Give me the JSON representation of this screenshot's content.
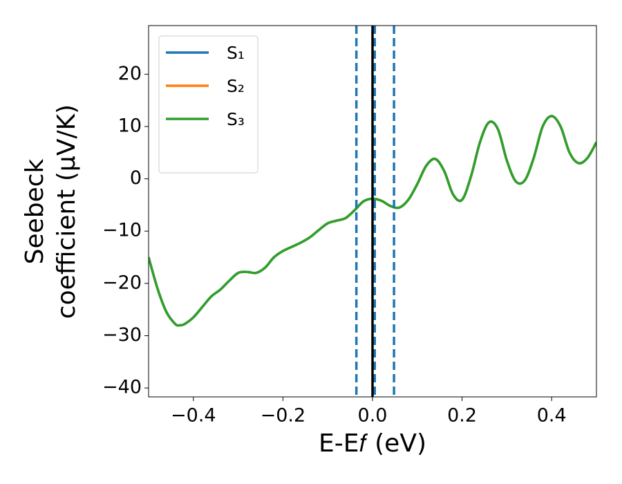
{
  "chart_data": {
    "type": "line",
    "xlabel": "E-E𝑓 (eV)",
    "ylabel": [
      "Seebeck",
      "coefficient  (μV/K)"
    ],
    "x": [
      -0.5,
      -0.48,
      -0.46,
      -0.44,
      -0.43,
      -0.42,
      -0.4,
      -0.38,
      -0.36,
      -0.34,
      -0.32,
      -0.3,
      -0.28,
      -0.26,
      -0.24,
      -0.22,
      -0.2,
      -0.18,
      -0.16,
      -0.14,
      -0.12,
      -0.1,
      -0.08,
      -0.06,
      -0.04,
      -0.02,
      0.0,
      0.02,
      0.04,
      0.06,
      0.08,
      0.1,
      0.12,
      0.14,
      0.16,
      0.18,
      0.2,
      0.22,
      0.24,
      0.26,
      0.28,
      0.3,
      0.32,
      0.34,
      0.36,
      0.38,
      0.4,
      0.42,
      0.44,
      0.46,
      0.48,
      0.5
    ],
    "series": [
      {
        "name": "S₁",
        "color": "#1f77b4",
        "values": [
          -15,
          -21,
          -25.5,
          -27.8,
          -28,
          -27.8,
          -26.5,
          -24.5,
          -22.5,
          -21.2,
          -19.5,
          -18,
          -17.8,
          -18,
          -17,
          -15,
          -13.8,
          -13,
          -12.2,
          -11.2,
          -9.8,
          -8.5,
          -8,
          -7.5,
          -6,
          -4.3,
          -3.8,
          -4.2,
          -5.2,
          -5.5,
          -4,
          -1,
          2.5,
          3.8,
          1.5,
          -3,
          -4,
          0.5,
          7,
          10.8,
          9.5,
          3.5,
          -0.5,
          -0.3,
          4,
          10,
          12,
          10,
          5,
          3,
          4,
          7
        ]
      },
      {
        "name": "S₂",
        "color": "#ff7f0e",
        "values": [
          -15,
          -21,
          -25.5,
          -27.8,
          -28,
          -27.8,
          -26.5,
          -24.5,
          -22.5,
          -21.2,
          -19.5,
          -18,
          -17.8,
          -18,
          -17,
          -15,
          -13.8,
          -13,
          -12.2,
          -11.2,
          -9.8,
          -8.5,
          -8,
          -7.5,
          -6,
          -4.3,
          -3.8,
          -4.2,
          -5.2,
          -5.5,
          -4,
          -1,
          2.5,
          3.8,
          1.5,
          -3,
          -4,
          0.5,
          7,
          10.8,
          9.5,
          3.5,
          -0.5,
          -0.3,
          4,
          10,
          12,
          10,
          5,
          3,
          4,
          7
        ]
      },
      {
        "name": "S₃",
        "color": "#2ca02c",
        "values": [
          -15,
          -21,
          -25.5,
          -27.8,
          -28,
          -27.8,
          -26.5,
          -24.5,
          -22.5,
          -21.2,
          -19.5,
          -18,
          -17.8,
          -18,
          -17,
          -15,
          -13.8,
          -13,
          -12.2,
          -11.2,
          -9.8,
          -8.5,
          -8,
          -7.5,
          -6,
          -4.3,
          -3.8,
          -4.2,
          -5.2,
          -5.5,
          -4,
          -1,
          2.5,
          3.8,
          1.5,
          -3,
          -4,
          0.5,
          7,
          10.8,
          9.5,
          3.5,
          -0.5,
          -0.3,
          4,
          10,
          12,
          10,
          5,
          3,
          4,
          7
        ]
      }
    ],
    "vlines": [
      {
        "x": -0.036,
        "color": "#1f77b4",
        "style": "dashed"
      },
      {
        "x": 0.005,
        "color": "#1f77b4",
        "style": "dashed"
      },
      {
        "x": 0.048,
        "color": "#1f77b4",
        "style": "dashed"
      },
      {
        "x": 0.0,
        "color": "#000000",
        "style": "solid"
      }
    ],
    "xlim": [
      -0.5,
      0.5
    ],
    "ylim": [
      -41.7,
      29.3
    ],
    "xticks": [
      {
        "value": -0.4,
        "label": "−0.4"
      },
      {
        "value": -0.2,
        "label": "−0.2"
      },
      {
        "value": 0.0,
        "label": "0.0"
      },
      0.2,
      0.4
    ],
    "yticks": [
      {
        "value": -40,
        "label": "−40"
      },
      {
        "value": -30,
        "label": "−30"
      },
      {
        "value": -20,
        "label": "−20"
      },
      {
        "value": -10,
        "label": "−10"
      },
      0,
      10,
      20
    ],
    "legend": "upper left",
    "grid": false
  }
}
